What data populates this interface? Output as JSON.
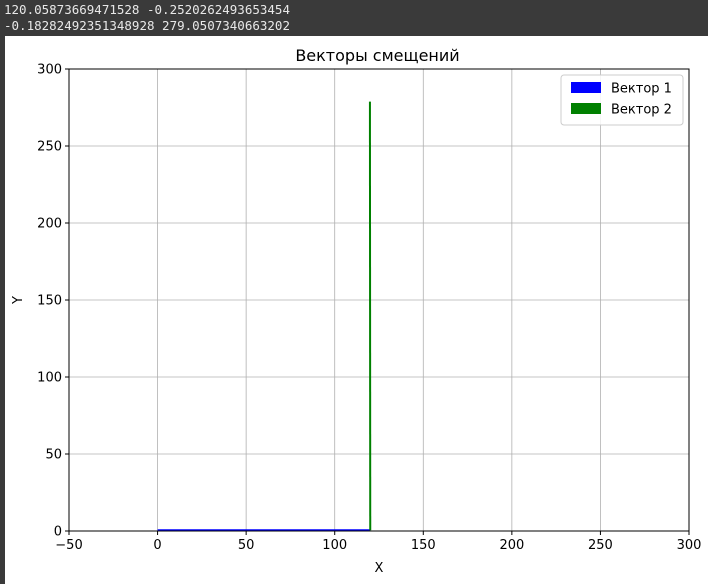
{
  "console": {
    "line1": "120.05873669471528 -0.2520262493653454",
    "line2": "-0.18282492351348928 279.0507340663202"
  },
  "chart_data": {
    "type": "quiver",
    "title": "Векторы смещений",
    "xlabel": "X",
    "ylabel": "Y",
    "xlim": [
      -50,
      300
    ],
    "ylim": [
      0,
      300
    ],
    "xticks": [
      -50,
      0,
      50,
      100,
      150,
      200,
      250,
      300
    ],
    "yticks": [
      0,
      50,
      100,
      150,
      200,
      250,
      300
    ],
    "grid": true,
    "legend_position": "top-right",
    "series": [
      {
        "name": "Вектор 1",
        "color": "#0000ff",
        "origin": [
          0,
          0
        ],
        "vector": [
          120.05873669471528,
          -0.2520262493653454
        ]
      },
      {
        "name": "Вектор 2",
        "color": "#008000",
        "origin": [
          120.05873669471528,
          -0.2520262493653454
        ],
        "vector": [
          -0.18282492351348928,
          279.0507340663202
        ]
      }
    ]
  }
}
